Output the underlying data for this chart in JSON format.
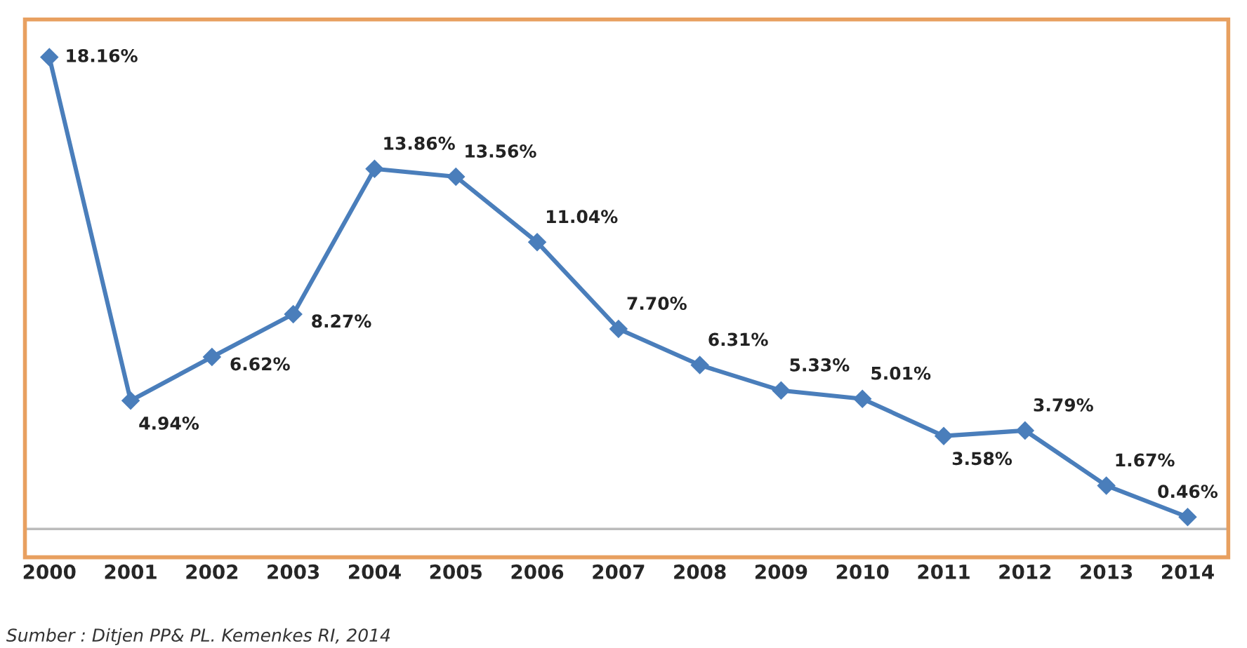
{
  "chart_data": {
    "type": "line",
    "categories": [
      "2000",
      "2001",
      "2002",
      "2003",
      "2004",
      "2005",
      "2006",
      "2007",
      "2008",
      "2009",
      "2010",
      "2011",
      "2012",
      "2013",
      "2014"
    ],
    "series": [
      {
        "color": "#4a7ebb",
        "values": [
          18.16,
          4.94,
          6.62,
          8.27,
          13.86,
          13.56,
          11.04,
          7.7,
          6.31,
          5.33,
          5.01,
          3.58,
          3.79,
          1.67,
          0.46
        ],
        "value_labels": [
          "18.16%",
          "4.94%",
          "6.62%",
          "8.27%",
          "13.86%",
          "13.56%",
          "11.04%",
          "7.70%",
          "6.31%",
          "5.33%",
          "5.01%",
          "3.58%",
          "3.79%",
          "1.67%",
          "0.46%"
        ]
      }
    ],
    "marker": "diamond",
    "line_style": "solid",
    "grid": false,
    "legend": false,
    "tick_labels": "x",
    "annotations": [
      "Sumber : Ditjen PP& PL. Kemenkes RI, 2014"
    ]
  }
}
